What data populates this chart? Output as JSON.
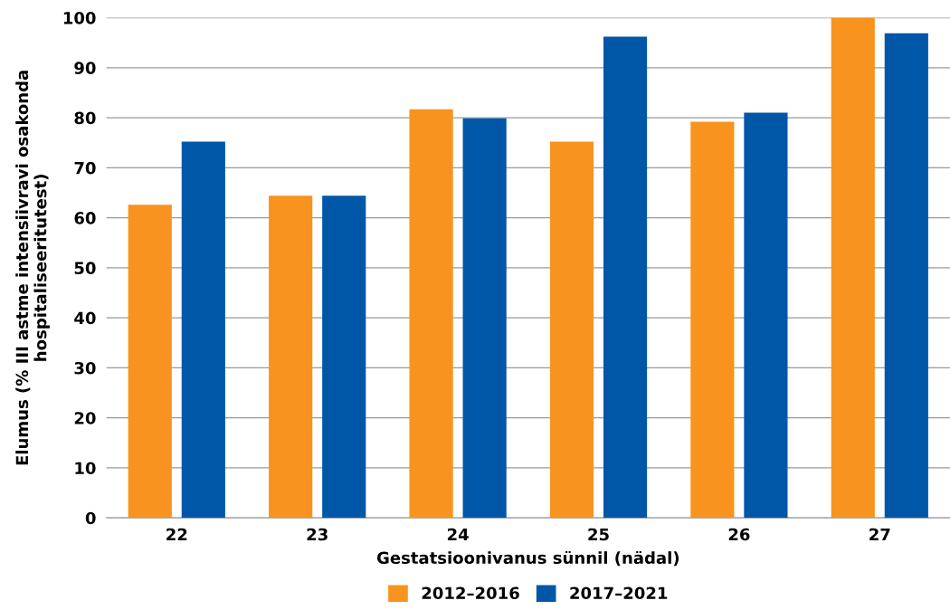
{
  "chart_data": {
    "type": "bar",
    "xlabel": "Gestatsioonivanus sünnil (nädal)",
    "ylabel": "Elumus (% III astme intensiivravi osakonda hospitaliseeritutest)",
    "categories": [
      "22",
      "23",
      "24",
      "25",
      "26",
      "27"
    ],
    "series": [
      {
        "name": "2012–2016",
        "color": "#f7931e",
        "values": [
          62.6,
          64.4,
          81.7,
          75.2,
          79.2,
          100
        ]
      },
      {
        "name": "2017–2021",
        "color": "#0057a8",
        "values": [
          75.2,
          64.4,
          79.9,
          96.2,
          81.0,
          96.9
        ]
      }
    ],
    "ylim": [
      0,
      100
    ],
    "yticks": [
      0,
      10,
      20,
      30,
      40,
      50,
      60,
      70,
      80,
      90,
      100
    ],
    "grid": "y",
    "legend": "bottom"
  }
}
